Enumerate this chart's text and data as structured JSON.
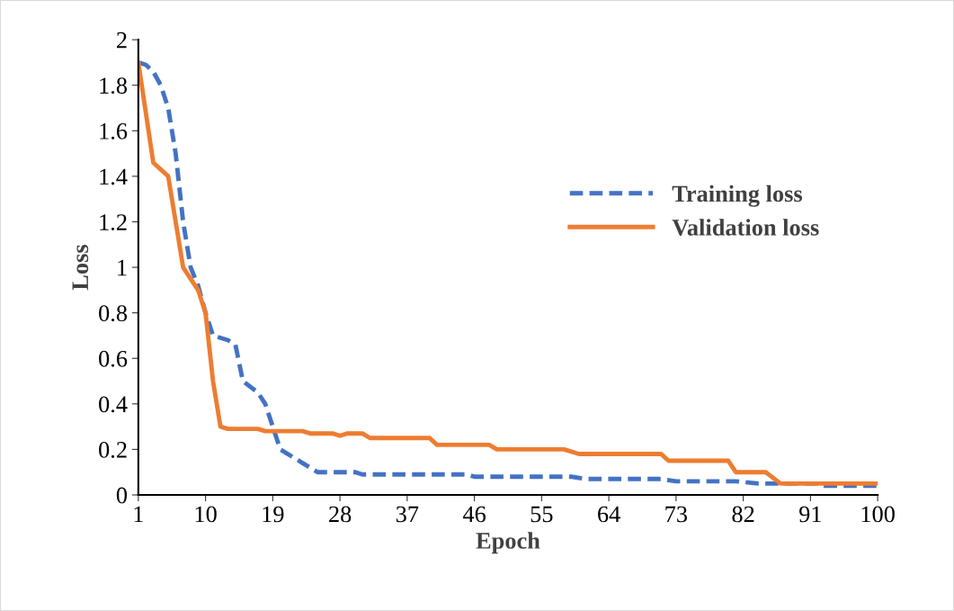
{
  "chart_data": {
    "type": "line",
    "xlabel": "Epoch",
    "ylabel": "Loss",
    "xlim": [
      1,
      100
    ],
    "xticks": [
      1,
      10,
      19,
      28,
      37,
      46,
      55,
      64,
      73,
      82,
      91,
      100
    ],
    "ylim": [
      0,
      2
    ],
    "yticks": [
      0,
      0.2,
      0.4,
      0.6,
      0.8,
      1,
      1.2,
      1.4,
      1.6,
      1.8,
      2
    ],
    "grid": false,
    "legend": "center right",
    "series": [
      {
        "name": "Training loss",
        "color": "#4472c4",
        "line_style": "dashed",
        "x": [
          1,
          2,
          3,
          4,
          5,
          6,
          7,
          8,
          9,
          10,
          11,
          13,
          14,
          15,
          17,
          18,
          19,
          20,
          22,
          23,
          25,
          30,
          31,
          45,
          46,
          59,
          61,
          71,
          73,
          81,
          84,
          92,
          93,
          100
        ],
        "values": [
          1.9,
          1.89,
          1.86,
          1.8,
          1.7,
          1.5,
          1.2,
          1.0,
          0.92,
          0.8,
          0.7,
          0.68,
          0.66,
          0.5,
          0.45,
          0.4,
          0.3,
          0.2,
          0.16,
          0.14,
          0.1,
          0.1,
          0.09,
          0.09,
          0.08,
          0.08,
          0.07,
          0.07,
          0.06,
          0.06,
          0.05,
          0.05,
          0.04,
          0.04
        ]
      },
      {
        "name": "Validation loss",
        "color": "#ed7d31",
        "line_style": "solid",
        "x": [
          1,
          3,
          5,
          7,
          9,
          10,
          11,
          12,
          13,
          17,
          18,
          23,
          24,
          27,
          28,
          29,
          31,
          32,
          40,
          41,
          48,
          49,
          58,
          60,
          71,
          72,
          80,
          81,
          85,
          87,
          100
        ],
        "values": [
          1.9,
          1.46,
          1.4,
          1.0,
          0.9,
          0.8,
          0.5,
          0.3,
          0.29,
          0.29,
          0.28,
          0.28,
          0.27,
          0.27,
          0.26,
          0.27,
          0.27,
          0.25,
          0.25,
          0.22,
          0.22,
          0.2,
          0.2,
          0.18,
          0.18,
          0.15,
          0.15,
          0.1,
          0.1,
          0.05,
          0.05
        ]
      }
    ]
  }
}
